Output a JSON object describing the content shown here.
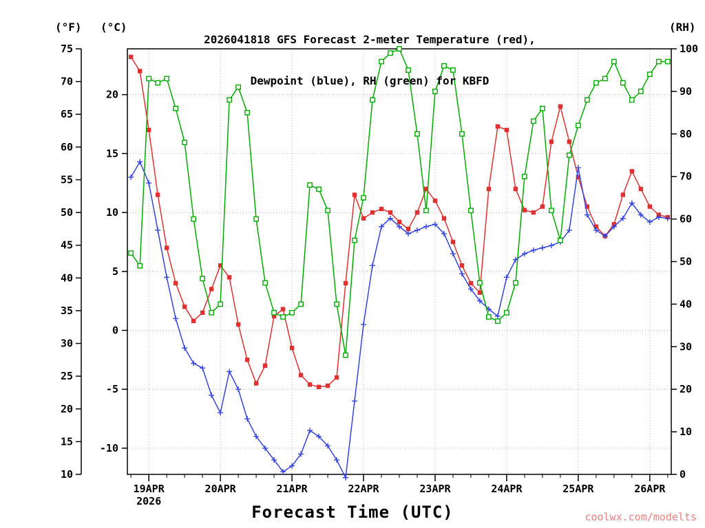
{
  "header": {
    "title_line1": "2026041818 GFS Forecast 2-meter Temperature (red),",
    "title_line2": "Dewpoint (blue), RH (green) for KBFD"
  },
  "axes": {
    "left_f": {
      "unit": "(°F)",
      "ticks": [
        75,
        70,
        65,
        60,
        55,
        50,
        45,
        40,
        35,
        30,
        25,
        20,
        15,
        10
      ]
    },
    "left_c": {
      "unit": "(°C)",
      "ticks": [
        20,
        15,
        10,
        5,
        0,
        -5,
        -10
      ]
    },
    "right_rh": {
      "unit": "(RH)",
      "ticks": [
        100,
        90,
        80,
        70,
        60,
        50,
        40,
        30,
        20,
        10,
        0
      ]
    },
    "x": {
      "labels": [
        "19APR",
        "20APR",
        "21APR",
        "22APR",
        "23APR",
        "24APR",
        "25APR",
        "26APR"
      ],
      "year": "2026",
      "title": "Forecast Time (UTC)"
    }
  },
  "watermark": {
    "text": "coolwx.com/modelts",
    "color": "#f08080"
  },
  "chart_data": {
    "type": "line",
    "title": "2026041818 GFS Forecast 2-meter Temperature (red), Dewpoint (blue), RH (green) for KBFD",
    "xlabel": "Forecast Time (UTC)",
    "x_tick_labels": [
      "19APR",
      "20APR",
      "21APR",
      "22APR",
      "23APR",
      "24APR",
      "25APR",
      "26APR"
    ],
    "x_year": "2026",
    "x_days_note": "days relative to 19APR 00UTC",
    "x_range": [
      -0.3,
      7.3
    ],
    "y_left": {
      "label": "(°F)",
      "f_range": [
        10,
        75
      ],
      "c_ticks": [
        20,
        15,
        10,
        5,
        0,
        -5,
        -10
      ]
    },
    "y_right": {
      "label": "(RH)",
      "range": [
        0,
        100
      ]
    },
    "grid": "dotted at day ticks and 5°C ticks",
    "x_days": [
      -0.25,
      -0.125,
      0,
      0.125,
      0.25,
      0.375,
      0.5,
      0.625,
      0.75,
      0.875,
      1,
      1.125,
      1.25,
      1.375,
      1.5,
      1.625,
      1.75,
      1.875,
      2,
      2.125,
      2.25,
      2.375,
      2.5,
      2.625,
      2.75,
      2.875,
      3,
      3.125,
      3.25,
      3.375,
      3.5,
      3.625,
      3.75,
      3.875,
      4,
      4.125,
      4.25,
      4.375,
      4.5,
      4.625,
      4.75,
      4.875,
      5,
      5.125,
      5.25,
      5.375,
      5.5,
      5.625,
      5.75,
      5.875,
      6,
      6.125,
      6.25,
      6.375,
      6.5,
      6.625,
      6.75,
      6.875,
      7,
      7.125,
      7.25
    ],
    "series": [
      {
        "name": "2-meter Temperature",
        "unit": "°C",
        "axis": "temp",
        "color": "#e03030",
        "marker": "filled-square",
        "values": [
          23.2,
          22.0,
          17.0,
          11.5,
          7.0,
          4.0,
          2.0,
          0.8,
          1.5,
          3.5,
          5.5,
          4.5,
          0.5,
          -2.5,
          -4.5,
          -3.0,
          1.2,
          1.8,
          -1.5,
          -3.8,
          -4.6,
          -4.8,
          -4.7,
          -4.0,
          4.0,
          11.5,
          9.5,
          10.0,
          10.3,
          10.0,
          9.2,
          8.6,
          10.0,
          12.0,
          11.0,
          9.5,
          7.5,
          5.5,
          4.0,
          3.2,
          12.0,
          17.3,
          17.0,
          12.0,
          10.2,
          10.0,
          10.5,
          16.0,
          19.0,
          16.0,
          13.0,
          10.5,
          8.8,
          8.0,
          9.0,
          11.5,
          13.5,
          12.0,
          10.5,
          9.8,
          9.6
        ]
      },
      {
        "name": "Dewpoint",
        "unit": "°C",
        "axis": "temp",
        "color": "#3344dd",
        "marker": "plus",
        "values": [
          13.0,
          14.3,
          12.5,
          8.5,
          4.5,
          1.0,
          -1.5,
          -2.8,
          -3.2,
          -5.5,
          -7.0,
          -3.5,
          -5.0,
          -7.5,
          -9.0,
          -10.0,
          -11.0,
          -12.0,
          -11.5,
          -10.5,
          -8.5,
          -9.0,
          -9.8,
          -11.0,
          -12.5,
          -6.0,
          0.5,
          5.5,
          8.8,
          9.5,
          8.8,
          8.2,
          8.5,
          8.8,
          9.0,
          8.2,
          6.5,
          4.8,
          3.5,
          2.5,
          1.8,
          1.2,
          4.5,
          6.0,
          6.5,
          6.8,
          7.0,
          7.2,
          7.5,
          8.5,
          13.8,
          9.8,
          8.5,
          8.0,
          8.8,
          9.5,
          10.8,
          9.8,
          9.2,
          9.6,
          9.5
        ]
      },
      {
        "name": "RH",
        "unit": "%",
        "axis": "rh",
        "color": "#00aa00",
        "marker": "open-square",
        "values": [
          52,
          49,
          93,
          92,
          93,
          86,
          78,
          60,
          46,
          38,
          40,
          88,
          91,
          85,
          60,
          45,
          38,
          37,
          38,
          40,
          68,
          67,
          62,
          40,
          28,
          55,
          65,
          88,
          97,
          99,
          100,
          95,
          80,
          62,
          90,
          96,
          95,
          80,
          62,
          45,
          37,
          36,
          38,
          45,
          70,
          83,
          86,
          62,
          55,
          75,
          82,
          88,
          92,
          93,
          97,
          92,
          88,
          90,
          94,
          97,
          97
        ]
      }
    ]
  }
}
